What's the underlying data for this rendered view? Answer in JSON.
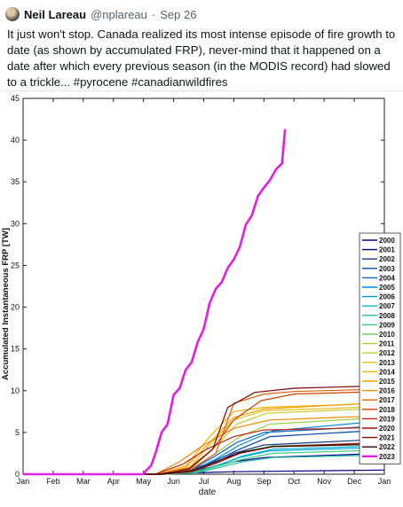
{
  "tweet": {
    "name": "Neil Lareau",
    "handle": "@nplareau",
    "separator": "·",
    "date": "Sep 26",
    "text": "It just won't stop. Canada realized its most intense episode of fire growth to date (as shown by accumulated FRP), never-mind that it happened on a date after which every previous season (in the MODIS record) had slowed to a trickle... #pyrocene #canadianwildfires"
  },
  "chart_data": {
    "type": "line",
    "xlabel": "date",
    "ylabel": "Accumulated Instantaneous FRP [TW]",
    "ylim": [
      0,
      45
    ],
    "yticks": [
      0,
      5,
      10,
      15,
      20,
      25,
      30,
      35,
      40,
      45
    ],
    "xticks": [
      "Jan",
      "Feb",
      "Mar",
      "Apr",
      "May",
      "Jun",
      "Jul",
      "Aug",
      "Sep",
      "Oct",
      "Nov",
      "Dec",
      "Jan"
    ],
    "grid": false,
    "legend_position": "right",
    "series": [
      {
        "name": "2000",
        "color": "#000080",
        "x": [
          0,
          4,
          5,
          6,
          7,
          12
        ],
        "y": [
          0,
          0,
          0.1,
          0.2,
          0.3,
          0.5
        ]
      },
      {
        "name": "2001",
        "color": "#00008b",
        "x": [
          0,
          4.5,
          5.5,
          6.2,
          7,
          8,
          12
        ],
        "y": [
          0,
          0,
          0.3,
          0.8,
          1.5,
          2.0,
          2.5
        ]
      },
      {
        "name": "2002",
        "color": "#1e3a8c",
        "x": [
          0,
          4.5,
          5.5,
          6.3,
          7,
          8,
          12
        ],
        "y": [
          0,
          0,
          0.4,
          1.2,
          2.5,
          3.5,
          4.2
        ]
      },
      {
        "name": "2003",
        "color": "#0047ab",
        "x": [
          0,
          4.5,
          5.5,
          6.3,
          7.2,
          8.2,
          12
        ],
        "y": [
          0,
          0,
          0.5,
          1.5,
          3.0,
          4.5,
          5.3
        ]
      },
      {
        "name": "2004",
        "color": "#0066cc",
        "x": [
          0,
          4.6,
          5.6,
          6.3,
          7.1,
          8,
          12
        ],
        "y": [
          0,
          0,
          0.6,
          2.0,
          3.8,
          5.0,
          5.8
        ]
      },
      {
        "name": "2005",
        "color": "#0088dd",
        "x": [
          0,
          4.6,
          5.6,
          6.4,
          7.2,
          8.3,
          12
        ],
        "y": [
          0,
          0,
          0.4,
          1.8,
          3.5,
          5.2,
          6.4
        ]
      },
      {
        "name": "2006",
        "color": "#00a0e0",
        "x": [
          0,
          4.6,
          5.7,
          6.4,
          7.2,
          8.2,
          12
        ],
        "y": [
          0,
          0,
          0.3,
          1.0,
          2.0,
          2.8,
          3.2
        ]
      },
      {
        "name": "2007",
        "color": "#00b8c8",
        "x": [
          0,
          4.7,
          5.8,
          6.5,
          7.3,
          8.3,
          12
        ],
        "y": [
          0,
          0,
          0.3,
          1.1,
          2.2,
          3.0,
          3.4
        ]
      },
      {
        "name": "2008",
        "color": "#20c0a0",
        "x": [
          0,
          4.7,
          5.8,
          6.5,
          7.3,
          8.3,
          12
        ],
        "y": [
          0,
          0,
          0.2,
          0.8,
          1.5,
          2.0,
          2.3
        ]
      },
      {
        "name": "2009",
        "color": "#40c880",
        "x": [
          0,
          4.7,
          5.8,
          6.5,
          7.3,
          8.3,
          12
        ],
        "y": [
          0,
          0,
          0.3,
          1.0,
          1.8,
          2.5,
          2.9
        ]
      },
      {
        "name": "2010",
        "color": "#70cc60",
        "x": [
          0,
          4.7,
          5.7,
          6.4,
          7.2,
          8.3,
          12
        ],
        "y": [
          0,
          0,
          0.4,
          1.3,
          2.6,
          3.4,
          3.7
        ]
      },
      {
        "name": "2011",
        "color": "#a0cc40",
        "x": [
          0,
          4.6,
          5.6,
          6.4,
          7.2,
          8.2,
          12
        ],
        "y": [
          0,
          0,
          0.6,
          2.5,
          4.5,
          6.0,
          6.8
        ]
      },
      {
        "name": "2012",
        "color": "#c8c830",
        "x": [
          0,
          4.6,
          5.5,
          6.3,
          7.1,
          8.1,
          12
        ],
        "y": [
          0,
          0,
          0.8,
          3.0,
          6.0,
          7.3,
          7.9
        ]
      },
      {
        "name": "2013",
        "color": "#e0c020",
        "x": [
          0,
          4.6,
          5.5,
          6.2,
          7.0,
          8.0,
          12
        ],
        "y": [
          0,
          0,
          0.7,
          3.5,
          6.5,
          7.6,
          8.1
        ]
      },
      {
        "name": "2014",
        "color": "#f0b000",
        "x": [
          0,
          4.5,
          5.4,
          6.2,
          7.0,
          8.0,
          12
        ],
        "y": [
          0,
          0,
          1.0,
          4.5,
          7.5,
          8.0,
          8.5
        ]
      },
      {
        "name": "2015",
        "color": "#f5a000",
        "x": [
          0,
          4.5,
          5.4,
          6.2,
          7.0,
          8.0,
          12
        ],
        "y": [
          0,
          0,
          0.8,
          3.8,
          6.8,
          7.8,
          8.6
        ]
      },
      {
        "name": "2016",
        "color": "#f08800",
        "x": [
          0,
          4.4,
          5.2,
          6.0,
          7.0,
          8.2,
          12
        ],
        "y": [
          0,
          0,
          1.5,
          3.5,
          5.5,
          6.5,
          7.0
        ]
      },
      {
        "name": "2017",
        "color": "#e06000",
        "x": [
          0,
          4.6,
          5.6,
          6.4,
          7.0,
          8.0,
          9.0,
          12
        ],
        "y": [
          0,
          0,
          0.6,
          2.5,
          8.5,
          9.6,
          9.9,
          10.2
        ]
      },
      {
        "name": "2018",
        "color": "#d04000",
        "x": [
          0,
          4.6,
          5.6,
          6.3,
          7.0,
          7.9,
          9.0,
          12
        ],
        "y": [
          0,
          0,
          0.8,
          3.0,
          6.5,
          8.8,
          9.6,
          9.9
        ]
      },
      {
        "name": "2019",
        "color": "#c02010",
        "x": [
          0,
          4.4,
          5.3,
          6.1,
          7.0,
          8.0,
          12
        ],
        "y": [
          0,
          0,
          1.2,
          3.0,
          4.5,
          5.3,
          5.6
        ]
      },
      {
        "name": "2020",
        "color": "#a01010",
        "x": [
          0,
          4.6,
          5.6,
          6.4,
          7.2,
          8.3,
          12
        ],
        "y": [
          0,
          0,
          0.3,
          1.3,
          2.5,
          3.3,
          3.8
        ]
      },
      {
        "name": "2021",
        "color": "#800000",
        "x": [
          0,
          4.5,
          5.5,
          6.3,
          6.8,
          7.7,
          9.0,
          12
        ],
        "y": [
          0,
          0,
          0.6,
          3.0,
          8.0,
          9.8,
          10.3,
          10.6
        ]
      },
      {
        "name": "2022",
        "color": "#3a0000",
        "x": [
          0,
          4.6,
          5.6,
          6.4,
          7.2,
          8.3,
          12
        ],
        "y": [
          0,
          0,
          0.4,
          1.5,
          2.6,
          3.3,
          3.6
        ]
      },
      {
        "name": "2023",
        "color": "#e21ee2",
        "x": [
          0,
          4.0,
          4.1,
          4.25,
          4.4,
          4.6,
          4.8,
          5.0,
          5.2,
          5.4,
          5.6,
          5.8,
          6.0,
          6.2,
          6.4,
          6.6,
          6.8,
          7.0,
          7.2,
          7.4,
          7.6,
          7.8,
          8.0,
          8.2,
          8.4,
          8.6,
          8.7
        ],
        "y": [
          0,
          0,
          0.5,
          1.0,
          2.5,
          5.0,
          6.0,
          9.5,
          10.3,
          12.5,
          13.4,
          15.8,
          17.4,
          20.5,
          22.2,
          23.0,
          24.7,
          25.7,
          27.2,
          29.9,
          31.0,
          33.3,
          34.3,
          35.2,
          36.5,
          37.2,
          41.3
        ]
      }
    ]
  }
}
